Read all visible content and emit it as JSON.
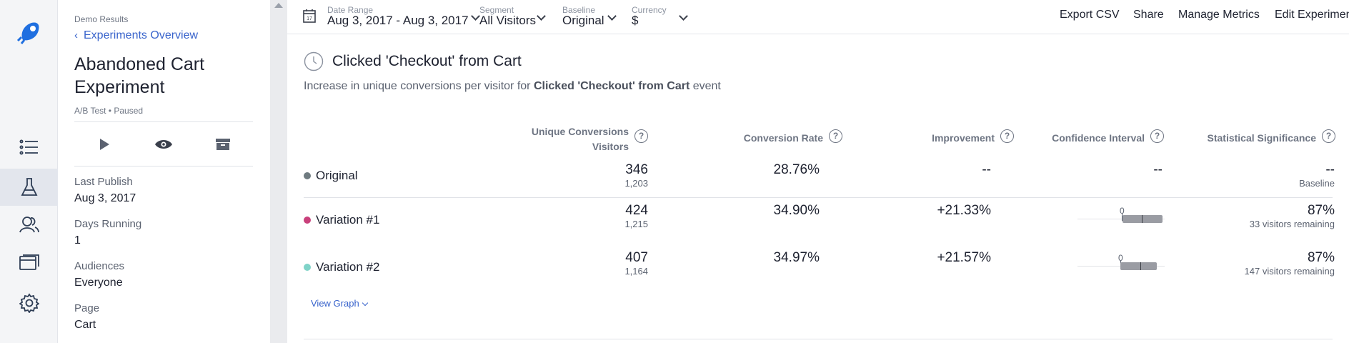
{
  "rail": {
    "items": [
      "list",
      "experiments",
      "audiences",
      "pages",
      "settings"
    ]
  },
  "side": {
    "crumb_top": "Demo Results",
    "crumb_link": "Experiments Overview",
    "title": "Abandoned Cart Experiment",
    "meta": "A/B Test • Paused",
    "fields": [
      {
        "label": "Last Publish",
        "value": "Aug 3, 2017"
      },
      {
        "label": "Days Running",
        "value": "1"
      },
      {
        "label": "Audiences",
        "value": "Everyone"
      },
      {
        "label": "Page",
        "value": "Cart"
      }
    ]
  },
  "toolbar": {
    "date_range_label": "Date Range",
    "date_range_value": "Aug 3, 2017 - Aug 3, 2017",
    "segment_label": "Segment",
    "segment_value": "All Visitors",
    "baseline_label": "Baseline",
    "baseline_value": "Original",
    "currency_label": "Currency",
    "currency_value": "$",
    "calendar_day": "17",
    "export": "Export CSV",
    "share": "Share",
    "manage": "Manage Metrics",
    "edit": "Edit Experimen"
  },
  "metric": {
    "title": "Clicked 'Checkout' from Cart",
    "desc_prefix": "Increase in unique conversions per visitor for",
    "desc_event": "Clicked 'Checkout' from Cart",
    "desc_suffix": "event"
  },
  "columns": {
    "unique_conv_line1": "Unique Conversions",
    "unique_conv_line2": "Visitors",
    "conv_rate": "Conversion Rate",
    "improvement": "Improvement",
    "ci": "Confidence Interval",
    "stat_sig": "Statistical Significance",
    "help_glyph": "?"
  },
  "rows": [
    {
      "name": "Original",
      "color": "#6f7b80",
      "conversions": "346",
      "visitors": "1,203",
      "rate": "28.76%",
      "improvement": "--",
      "ci": "--",
      "sig": "--",
      "sig_sub": "Baseline"
    },
    {
      "name": "Variation #1",
      "color": "#c9407b",
      "conversions": "424",
      "visitors": "1,215",
      "rate": "34.90%",
      "improvement": "+21.33%",
      "ci_zero": "0",
      "sig": "87%",
      "sig_sub": "33 visitors remaining"
    },
    {
      "name": "Variation #2",
      "color": "#7fd3c8",
      "conversions": "407",
      "visitors": "1,164",
      "rate": "34.97%",
      "improvement": "+21.57%",
      "ci_zero": "0",
      "sig": "87%",
      "sig_sub": "147 visitors remaining"
    }
  ],
  "view_graph": "View Graph"
}
